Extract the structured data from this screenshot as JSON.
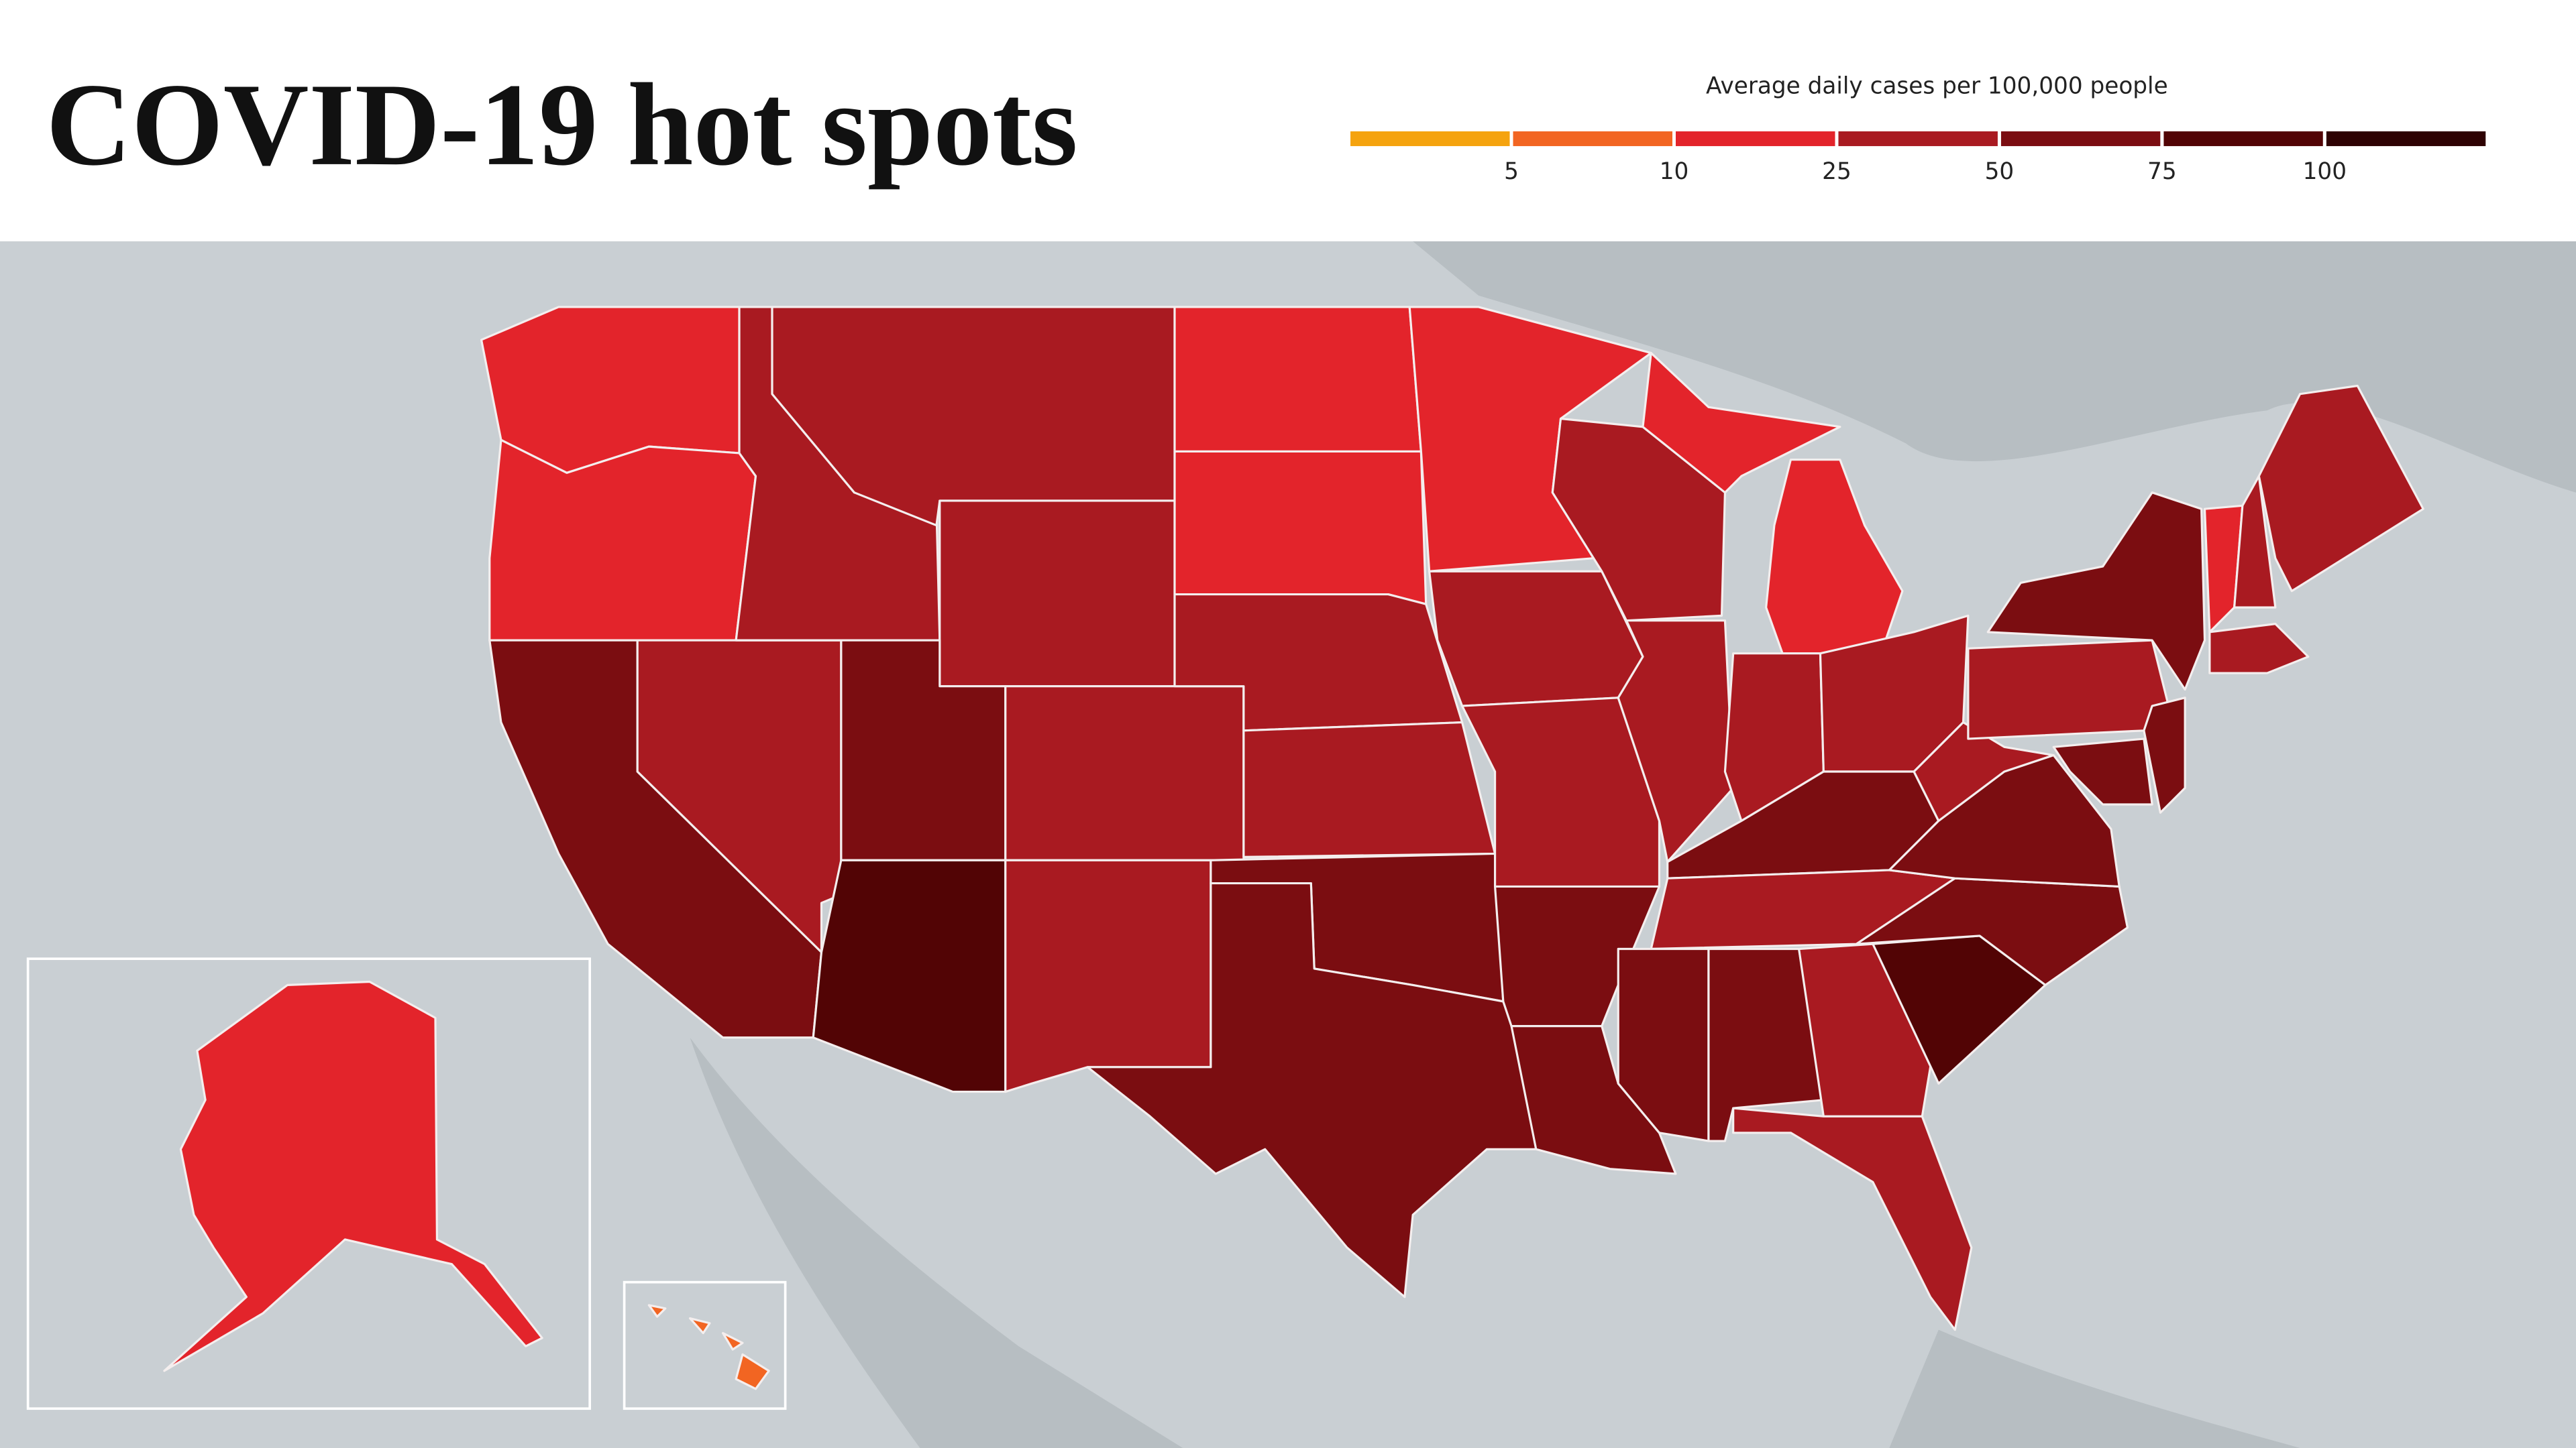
{
  "title": "COVID-19 hot spots",
  "legend": {
    "title": "Average daily cases per 100,000 people",
    "colors": [
      "#f5a30e",
      "#f26522",
      "#e3242b",
      "#a91a21",
      "#7b0d11",
      "#520405",
      "#2e0203"
    ],
    "ticks": [
      5,
      10,
      25,
      50,
      75,
      100
    ]
  }
}
